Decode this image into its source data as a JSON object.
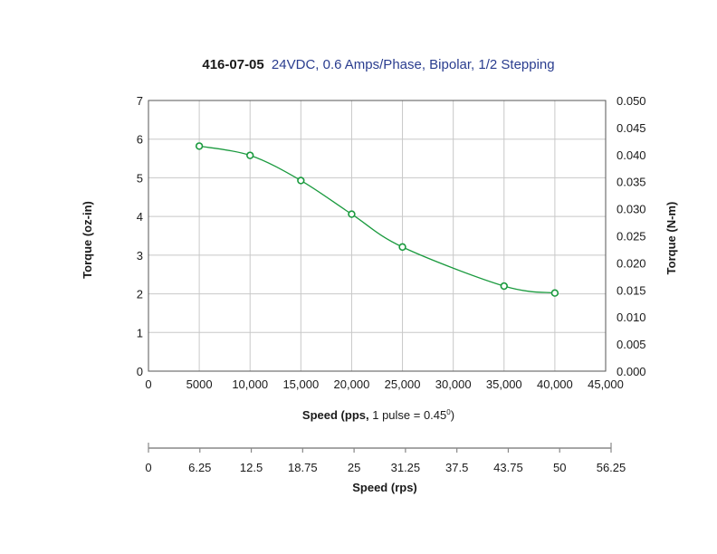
{
  "chart_data": {
    "type": "line",
    "title": {
      "model": "416-07-05",
      "description": "24VDC, 0.6 Amps/Phase, Bipolar, 1/2 Stepping"
    },
    "x": [
      5000,
      10000,
      15000,
      20000,
      25000,
      35000,
      40000
    ],
    "y": [
      5.82,
      5.58,
      4.93,
      4.06,
      3.21,
      2.2,
      2.02
    ],
    "xlim": [
      0,
      45000
    ],
    "ylim": [
      0,
      7
    ],
    "y2lim": [
      0,
      0.05
    ],
    "x_ticks": [
      "0",
      "5000",
      "10,000",
      "15,000",
      "20,000",
      "25,000",
      "30,000",
      "35,000",
      "40,000",
      "45,000"
    ],
    "y_ticks": [
      "0",
      "1",
      "2",
      "3",
      "4",
      "5",
      "6",
      "7"
    ],
    "y2_ticks": [
      "0.000",
      "0.005",
      "0.010",
      "0.015",
      "0.020",
      "0.025",
      "0.030",
      "0.035",
      "0.040",
      "0.045",
      "0.050"
    ],
    "x2_ticks": [
      "0",
      "6.25",
      "12.5",
      "18.75",
      "25",
      "31.25",
      "37.5",
      "43.75",
      "50",
      "56.25"
    ],
    "xlabel": {
      "bold": "Speed (pps,",
      "normal": " 1 pulse = 0.45",
      "sup": "0",
      "close": ")"
    },
    "x2label": "Speed (rps)",
    "ylabel": "Torque (oz-in)",
    "y2label": "Torque (N-m)",
    "grid": true,
    "colors": {
      "line": "#1a9a3e",
      "grid": "#c8c8c8",
      "axis": "#555555"
    }
  }
}
